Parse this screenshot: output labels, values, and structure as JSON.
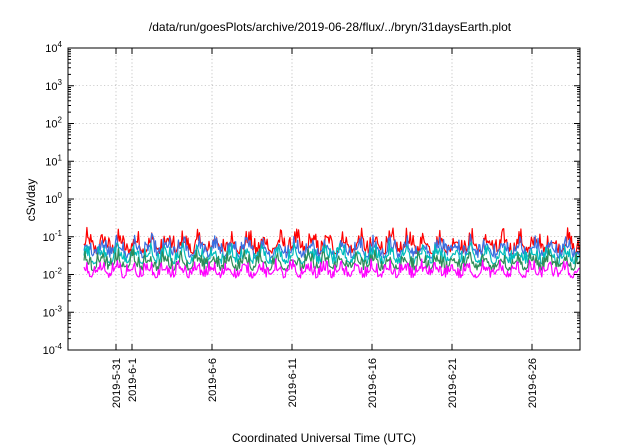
{
  "chart_data": {
    "type": "line",
    "title": "/data/run/goesPlots/archive/2019-06-28/flux/../bryn/31daysEarth.plot",
    "xlabel": "Coordinated Universal Time (UTC)",
    "ylabel": "cSv/day",
    "yscale": "log",
    "ylim": [
      0.0001,
      10000
    ],
    "xlim": [
      "2019-05-28",
      "2019-06-29"
    ],
    "grid": true,
    "y_ticks": [
      {
        "base": "10",
        "exp": "-4",
        "value": 0.0001
      },
      {
        "base": "10",
        "exp": "-3",
        "value": 0.001
      },
      {
        "base": "10",
        "exp": "-2",
        "value": 0.01
      },
      {
        "base": "10",
        "exp": "-1",
        "value": 0.1
      },
      {
        "base": "10",
        "exp": "0",
        "value": 1
      },
      {
        "base": "10",
        "exp": "1",
        "value": 10
      },
      {
        "base": "10",
        "exp": "2",
        "value": 100
      },
      {
        "base": "10",
        "exp": "3",
        "value": 1000
      },
      {
        "base": "10",
        "exp": "4",
        "value": 10000
      }
    ],
    "x_ticks": [
      {
        "label": "2019-5-31",
        "date": "2019-05-31"
      },
      {
        "label": "2019-6-1",
        "date": "2019-06-01"
      },
      {
        "label": "2019-6-6",
        "date": "2019-06-06"
      },
      {
        "label": "2019-6-11",
        "date": "2019-06-11"
      },
      {
        "label": "2019-6-16",
        "date": "2019-06-16"
      },
      {
        "label": "2019-6-21",
        "date": "2019-06-21"
      },
      {
        "label": "2019-6-26",
        "date": "2019-06-26"
      }
    ],
    "series": [
      {
        "color": "#ff0000",
        "base": 0.06,
        "amp": 0.3
      },
      {
        "color": "#3a6fe0",
        "base": 0.045,
        "amp": 0.28
      },
      {
        "color": "#00bcbc",
        "base": 0.03,
        "amp": 0.25
      },
      {
        "color": "#2e8b57",
        "base": 0.02,
        "amp": 0.25
      },
      {
        "color": "#ff00ff",
        "base": 0.012,
        "amp": 0.22
      }
    ]
  }
}
